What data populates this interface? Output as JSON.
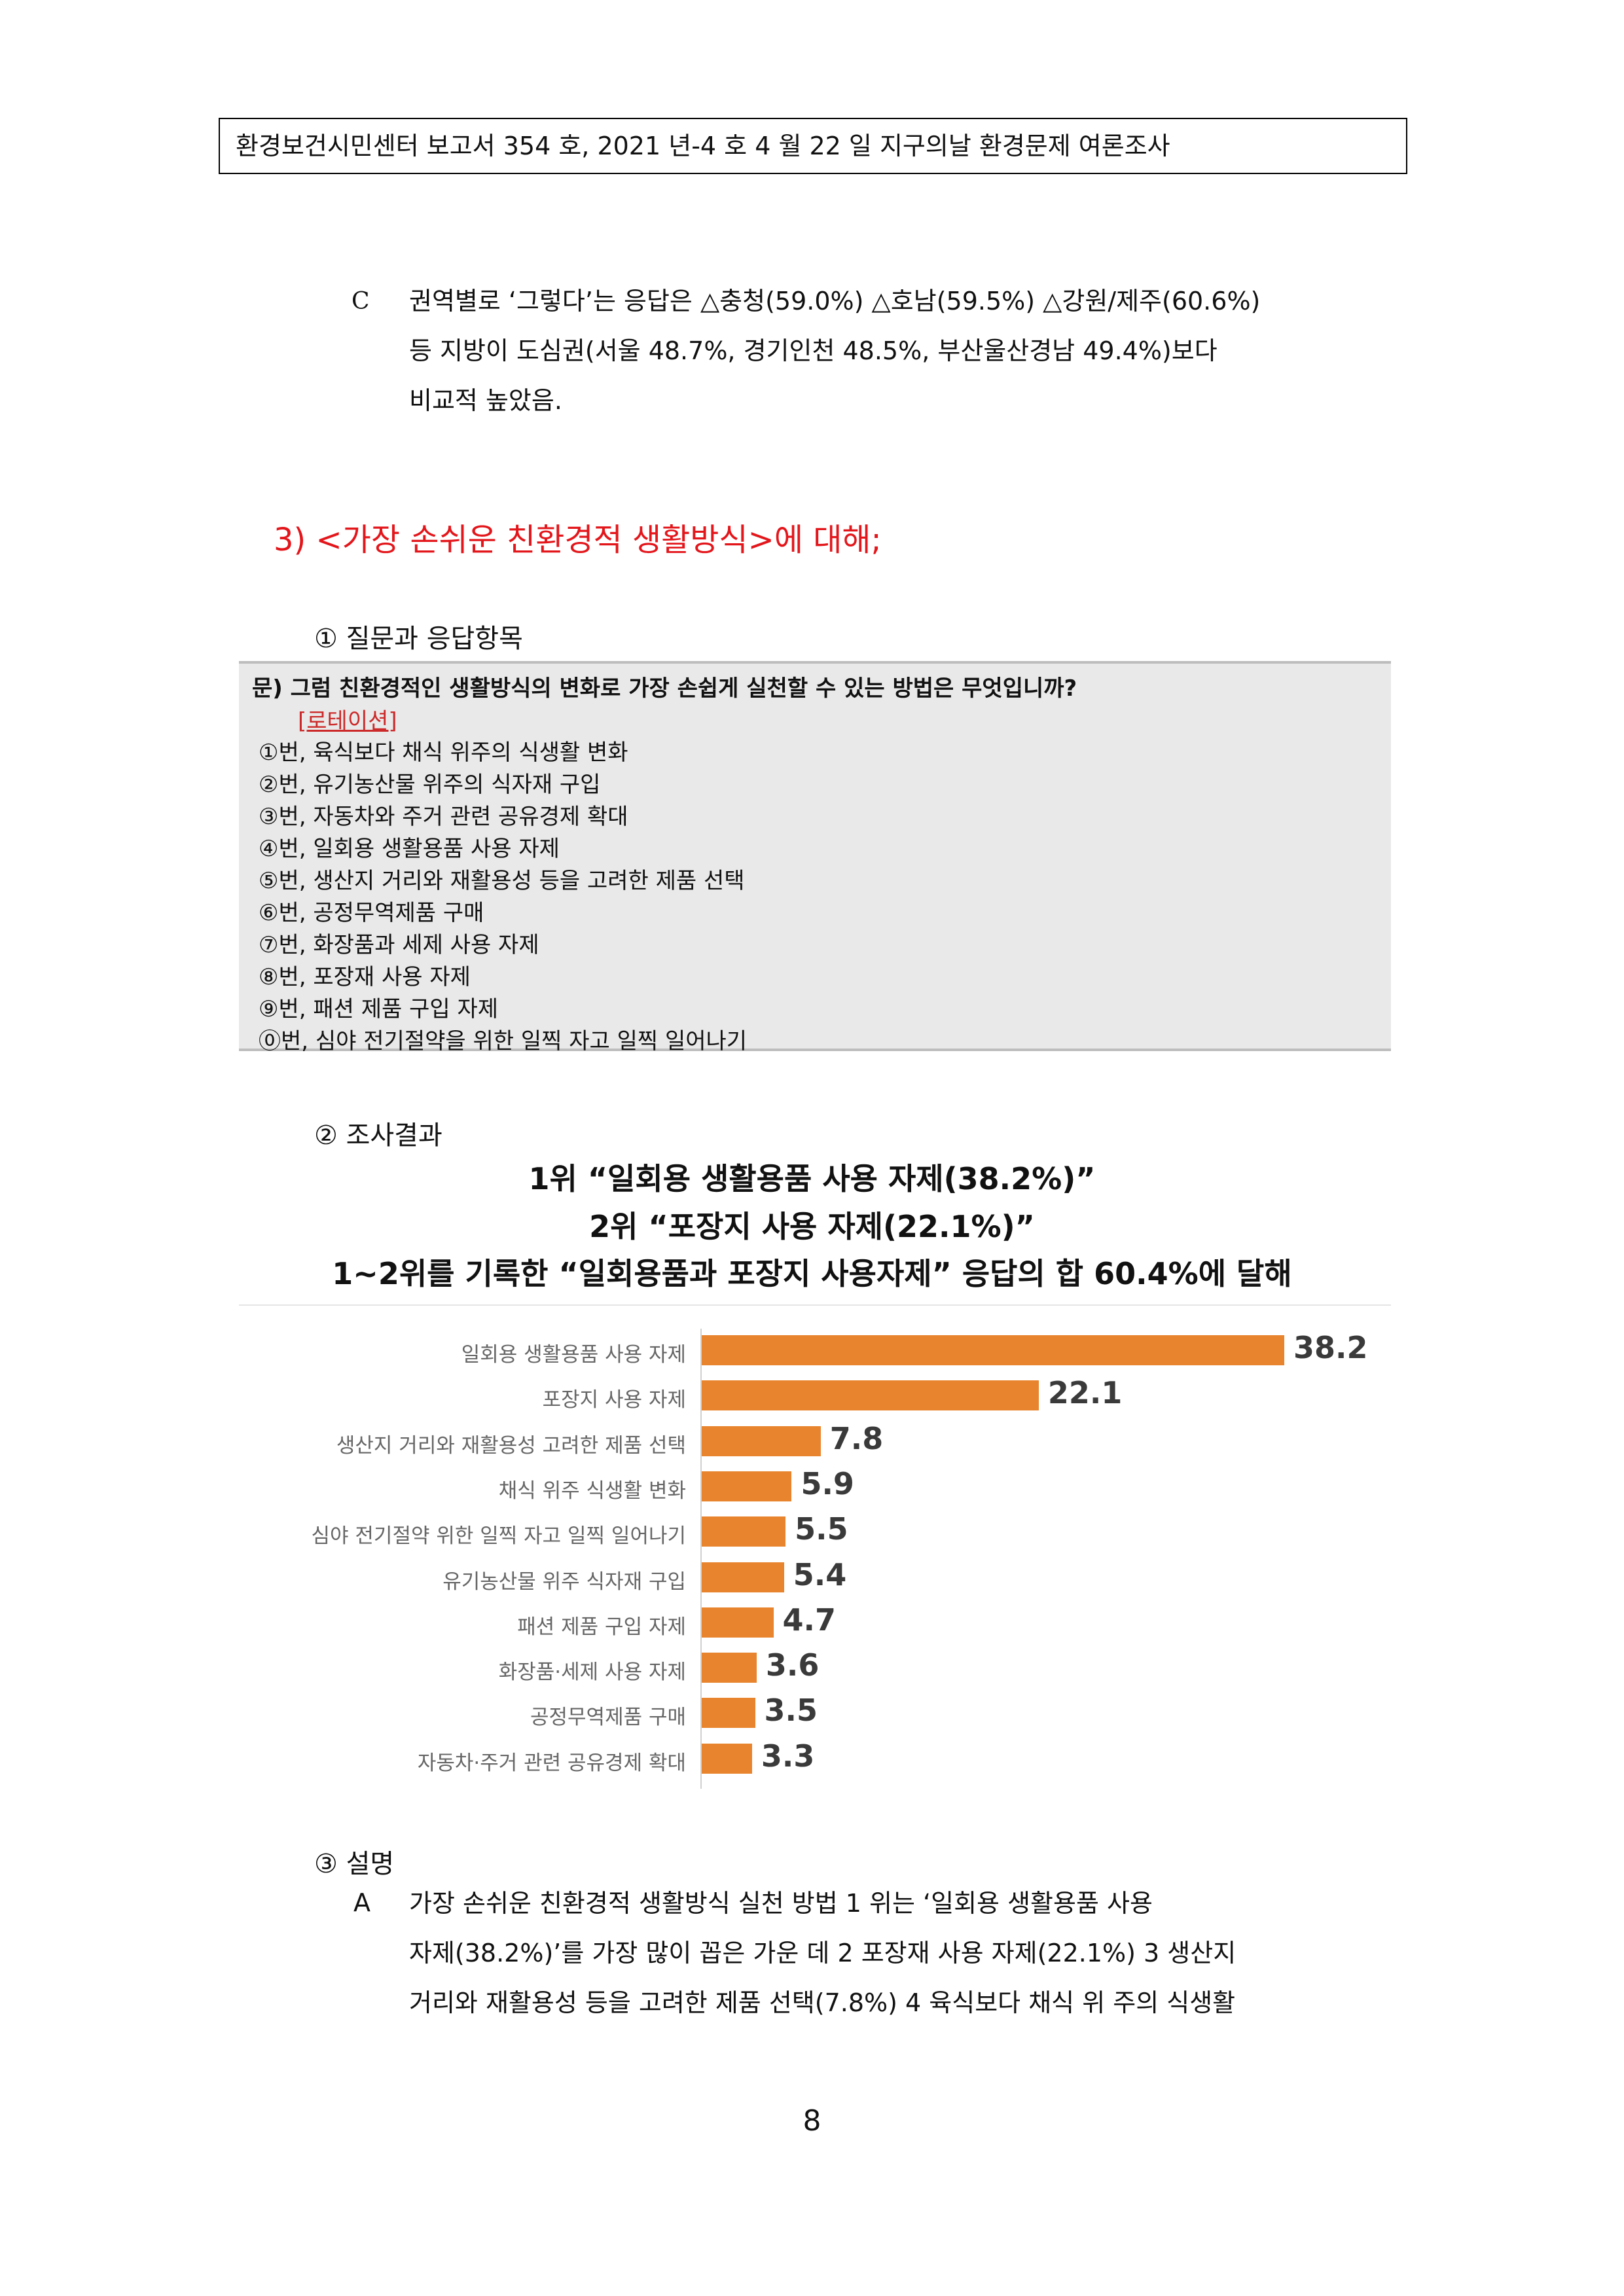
{
  "header": "환경보건시민센터 보고서 354 호, 2021 년-4 호 4 월 22 일 지구의날 환경문제 여론조사",
  "para_c": {
    "bullet": "C",
    "lines": [
      "권역별로 ‘그렇다’는 응답은 △충청(59.0%) △호남(59.5%) △강원/제주(60.6%)",
      "등 지방이 도심권(서울 48.7%, 경기인천 48.5%, 부산울산경남 49.4%)보다",
      "비교적 높았음."
    ]
  },
  "section3_title": "3)   <가장 손쉬운 친환경적 생활방식>에 대해;",
  "sub1": "①   질문과 응답항목",
  "question": {
    "text": "문) 그럼 친환경적인 생활방식의 변화로 가장 손쉽게 실천할 수 있는 방법은 무엇입니까?",
    "tag": "[로테이션]",
    "options": [
      "①번, 육식보다 채식 위주의 식생활 변화",
      "②번, 유기농산물 위주의 식자재 구입",
      "③번, 자동차와 주거 관련 공유경제 확대",
      "④번, 일회용 생활용품 사용 자제",
      "⑤번, 생산지 거리와 재활용성 등을 고려한 제품 선택",
      "⑥번, 공정무역제품 구매",
      "⑦번, 화장품과 세제 사용 자제",
      "⑧번, 포장재 사용 자제",
      "⑨번, 패션 제품 구입 자제",
      "⓪번, 심야 전기절약을 위한 일찍 자고 일찍 일어나기"
    ]
  },
  "sub2": "②   조사결과",
  "result_headlines": [
    "1위 “일회용 생활용품 사용 자제(38.2%)”",
    "2위 “포장지 사용 자제(22.1%)”",
    "1~2위를 기록한 “일회용품과 포장지 사용자제” 응답의 합 60.4%에 달해"
  ],
  "chart_data": {
    "type": "bar",
    "orientation": "horizontal",
    "categories": [
      "일회용 생활용품 사용 자제",
      "포장지 사용 자제",
      "생산지 거리와 재활용성 고려한 제품 선택",
      "채식 위주 식생활 변화",
      "심야 전기절약 위한 일찍 자고 일찍 일어나기",
      "유기농산물 위주 식자재 구입",
      "패션 제품 구입 자제",
      "화장품·세제 사용 자제",
      "공정무역제품 구매",
      "자동차·주거 관련 공유경제 확대"
    ],
    "values": [
      38.2,
      22.1,
      7.8,
      5.9,
      5.5,
      5.4,
      4.7,
      3.6,
      3.5,
      3.3
    ],
    "value_labels": [
      "38.2",
      "22.1",
      "7.8",
      "5.9",
      "5.5",
      "5.4",
      "4.7",
      "3.6",
      "3.5",
      "3.3"
    ],
    "bar_color": "#e8842d",
    "title": "",
    "xlabel": "",
    "ylabel": ""
  },
  "sub3": "③   설명",
  "desc": {
    "bullet": "A",
    "lines": [
      "가장  손쉬운  친환경적  생활방식  실천  방법  1  위는  ‘일회용  생활용품  사용",
      "자제(38.2%)’를  가장  많이  꼽은  가운  데  2  포장재  사용  자제(22.1%)  3  생산지",
      "거리와  재활용성  등을  고려한  제품  선택(7.8%) 4 육식보다  채식  위  주의  식생활"
    ]
  },
  "page_number": "8"
}
